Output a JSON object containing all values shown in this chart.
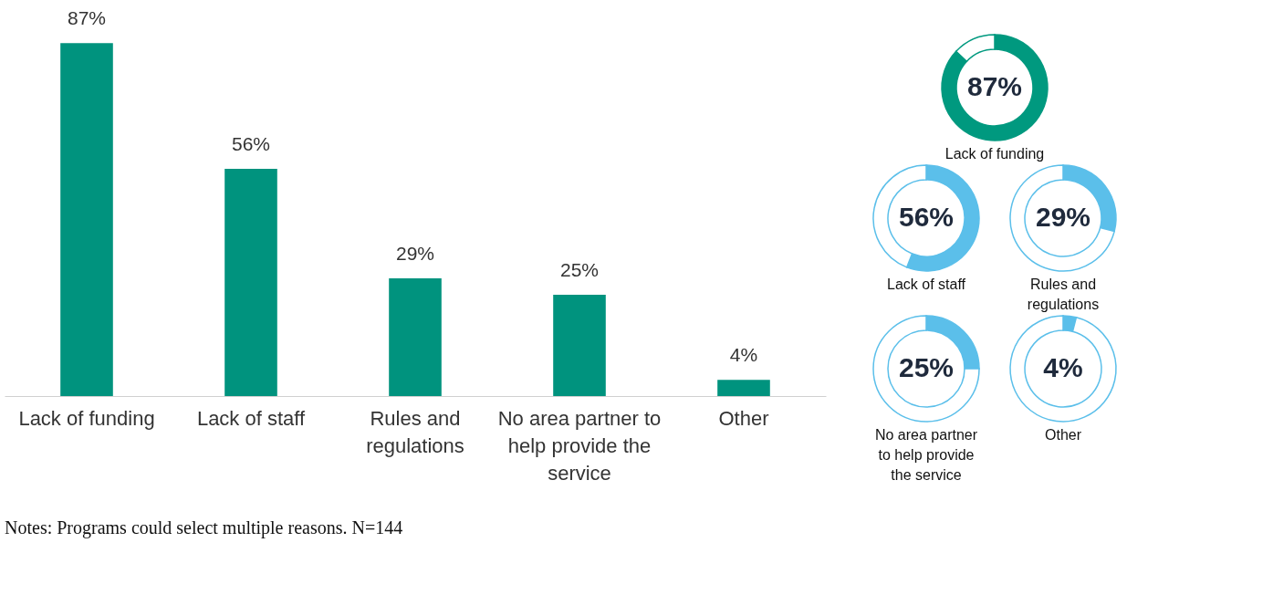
{
  "chart_data": [
    {
      "type": "bar",
      "categories": [
        "Lack of funding",
        "Lack of staff",
        "Rules and regulations",
        "No area partner to help provide the service",
        "Other"
      ],
      "values": [
        87,
        56,
        29,
        25,
        4
      ],
      "color": "#00937e",
      "value_labels": [
        "87%",
        "56%",
        "29%",
        "25%",
        "4%"
      ],
      "annotations": [
        "Notes: Programs could select multiple reasons. N=144"
      ]
    },
    {
      "type": "donut",
      "title": "Lack of funding",
      "categories": [
        null,
        null
      ],
      "values": [
        87,
        13
      ],
      "colors": [
        "#00997f",
        "#ffffff"
      ],
      "value_labels": [
        "87%",
        null
      ]
    },
    {
      "type": "donut",
      "title": "Lack of staff",
      "categories": [
        null,
        null
      ],
      "values": [
        56,
        44
      ],
      "colors": [
        "#5bbfea",
        "#ffffff"
      ],
      "value_labels": [
        "56%",
        null
      ]
    },
    {
      "type": "donut",
      "title": "Rules and regulations",
      "categories": [
        null,
        null
      ],
      "values": [
        29,
        71
      ],
      "colors": [
        "#5bbfea",
        "#ffffff"
      ],
      "value_labels": [
        "29%",
        null
      ]
    },
    {
      "type": "donut",
      "title": "No area partner to help provide the service",
      "categories": [
        null,
        null
      ],
      "values": [
        25,
        75
      ],
      "colors": [
        "#5bbfea",
        "#ffffff"
      ],
      "value_labels": [
        "25%",
        null
      ]
    },
    {
      "type": "donut",
      "title": "Other",
      "categories": [
        null,
        null
      ],
      "values": [
        4,
        96
      ],
      "colors": [
        "#5bbfea",
        "#ffffff"
      ],
      "value_labels": [
        "4%",
        null
      ]
    }
  ]
}
